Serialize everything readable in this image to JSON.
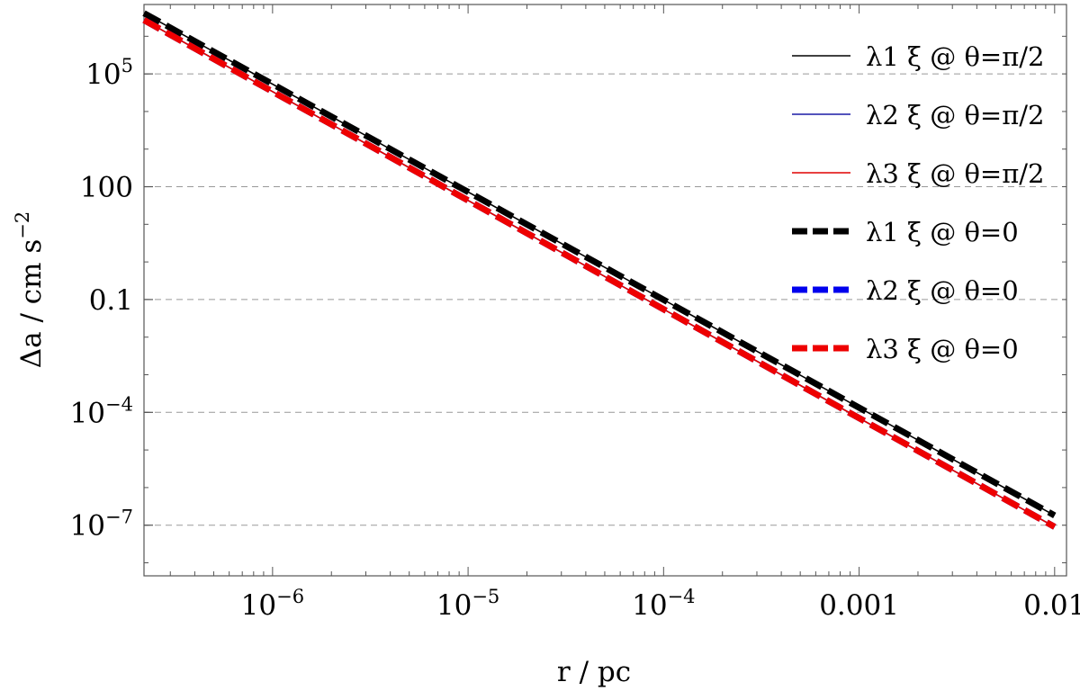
{
  "chart_data": {
    "type": "line",
    "xscale": "log",
    "yscale": "log",
    "xlim": [
      2.2e-07,
      0.0115
    ],
    "ylim": [
      4.5e-09,
      7000000
    ],
    "xlabel": "r / pc",
    "ylabel": "Δa / cm s",
    "ylabel_exponent": "−2",
    "grid": "horizontal-dashed",
    "legend_position": "top-right",
    "xticks": [
      {
        "value": 1e-06,
        "base": "10",
        "exp": "−6"
      },
      {
        "value": 1e-05,
        "base": "10",
        "exp": "−5"
      },
      {
        "value": 0.0001,
        "base": "10",
        "exp": "−4"
      },
      {
        "value": 0.001,
        "base": "0.001",
        "exp": ""
      },
      {
        "value": 0.01,
        "base": "0.01",
        "exp": ""
      }
    ],
    "yticks": [
      {
        "value": 1e-07,
        "base": "10",
        "exp": "−7"
      },
      {
        "value": 0.0001,
        "base": "10",
        "exp": "−4"
      },
      {
        "value": 0.1,
        "base": "0.1",
        "exp": ""
      },
      {
        "value": 100,
        "base": "100",
        "exp": ""
      },
      {
        "value": 100000,
        "base": "10",
        "exp": "5"
      }
    ],
    "series": [
      {
        "name": "λ1 ξ @ θ=π/2",
        "color": "#000000",
        "style": "solid",
        "x": [
          2.2e-07,
          0.01
        ],
        "y": [
          4100000,
          1.81e-07
        ]
      },
      {
        "name": "λ2 ξ @ θ=π/2",
        "color": "#1a1aa6",
        "style": "solid",
        "x": [
          2.2e-07,
          0.01
        ],
        "y": [
          2700000,
          9e-08
        ]
      },
      {
        "name": "λ3 ξ @ θ=π/2",
        "color": "#e00000",
        "style": "solid",
        "x": [
          2.2e-07,
          0.01
        ],
        "y": [
          2700000,
          9e-08
        ]
      },
      {
        "name": "λ1 ξ @ θ=0",
        "color": "#000000",
        "style": "dashed",
        "x": [
          2.2e-07,
          0.01
        ],
        "y": [
          4100000,
          1.81e-07
        ]
      },
      {
        "name": "λ2 ξ @ θ=0",
        "color": "#0000ee",
        "style": "dashed",
        "x": [
          2.2e-07,
          0.01
        ],
        "y": [
          2700000,
          9e-08
        ]
      },
      {
        "name": "λ3 ξ @ θ=0",
        "color": "#ee0000",
        "style": "dashed",
        "x": [
          2.2e-07,
          0.01
        ],
        "y": [
          2700000,
          9e-08
        ]
      }
    ]
  }
}
